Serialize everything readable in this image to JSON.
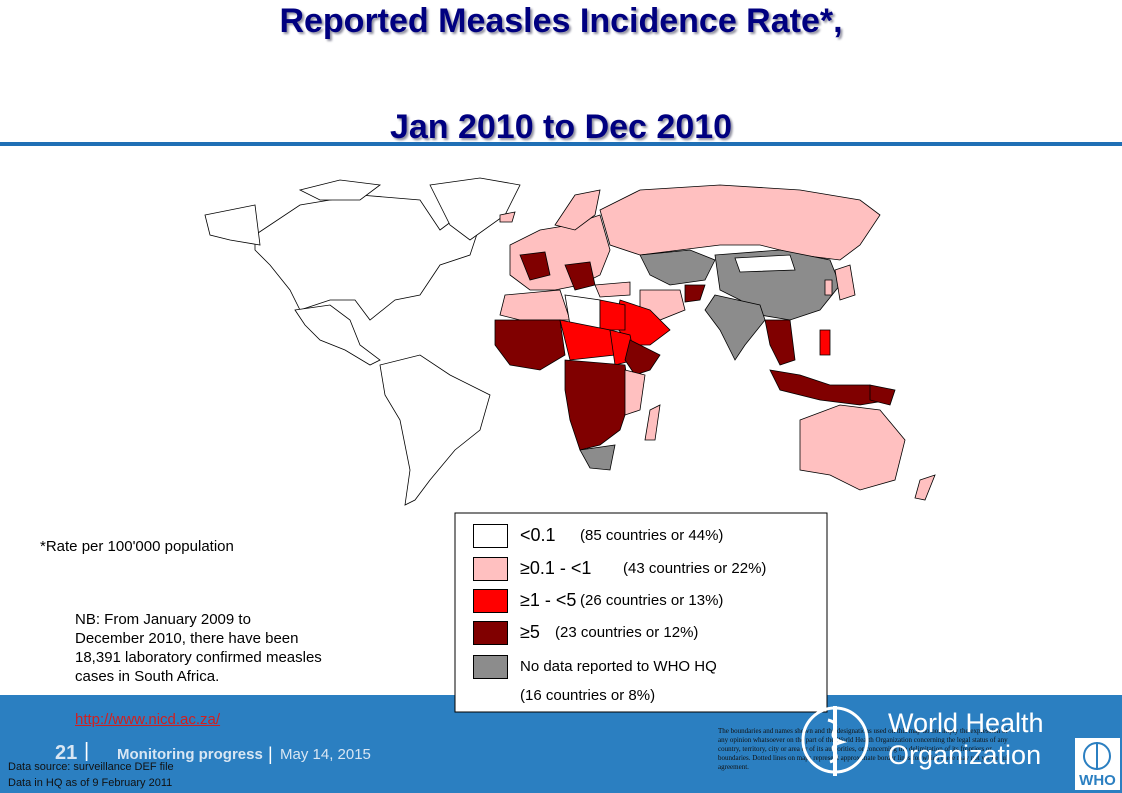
{
  "header": {
    "title": [
      "Reported Measles Incidence Rate*,",
      "Jan 2010 to Dec 2010"
    ]
  },
  "footnote": "*Rate per 100'000 population",
  "legend": [
    {
      "label": "<0.1",
      "note": "(85 countries or 44%)",
      "color": "#ffffff"
    },
    {
      "label": "≥0.1 - <1",
      "note": "(43 countries or 22%)",
      "color": "#ffc0c0"
    },
    {
      "label": "≥1 - <5",
      "note": "(26 countries or 13%)",
      "color": "#ff0000"
    },
    {
      "label": "≥5",
      "note": "(23 countries or 12%)",
      "color": "#800000"
    },
    {
      "label": "No data reported to WHO HQ",
      "note": "(16 countries or 8%)",
      "color": "#8c8c8c"
    }
  ],
  "nb": [
    "NB: From January 2009 to",
    "December 2010, there have been",
    "18,391 laboratory confirmed measles",
    "cases in South Africa."
  ],
  "link": "http://www.nicd.ac.za/",
  "footer": {
    "page": "21",
    "separator": "|",
    "section": "Monitoring progress",
    "date": "May 14, 2015",
    "source": [
      "Data source: surveillance DEF file",
      "Data in HQ as of 9 February 2011"
    ],
    "org": [
      "World Health",
      "Organization"
    ],
    "who": "WHO",
    "disclaimer": "The boundaries and names shown and the designations used on this map do not imply the expression of any opinion whatsoever on the part of the World Health Organization concerning the legal status of any country, territory, city or area or of its authorities, or concerning the delimitation of its frontiers or boundaries. Dotted lines on maps represent approximate border lines for which there may not yet be full agreement."
  }
}
